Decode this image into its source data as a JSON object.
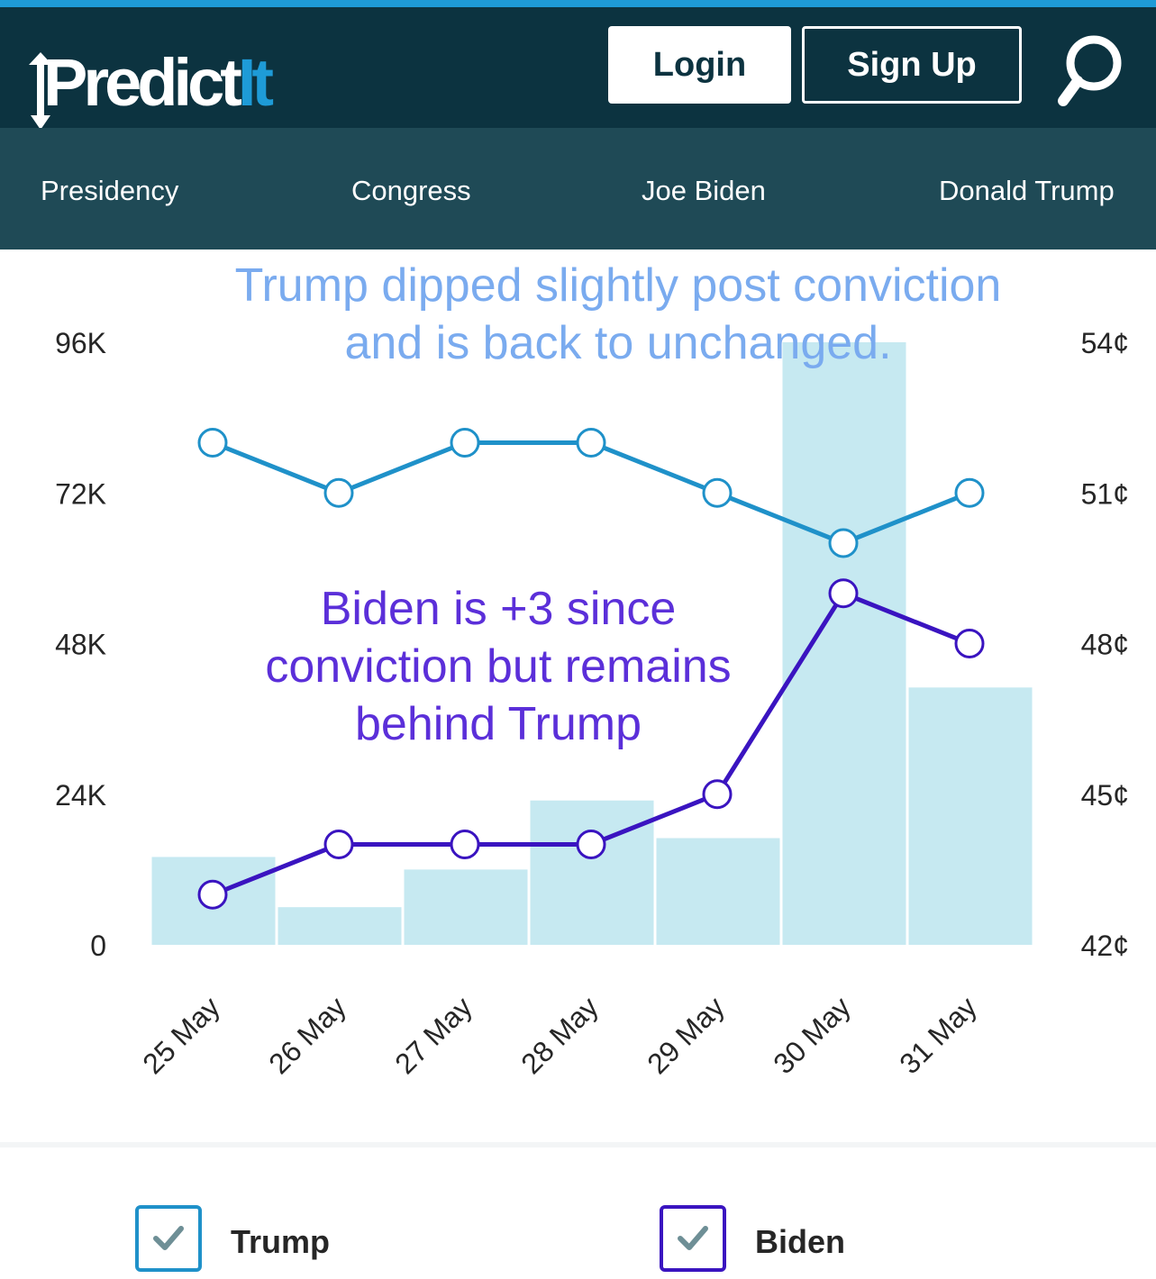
{
  "header": {
    "logo": "PredictIt",
    "login_label": "Login",
    "signup_label": "Sign Up",
    "search_icon": "search-icon"
  },
  "nav": {
    "items": [
      {
        "label": "Presidency"
      },
      {
        "label": "Congress"
      },
      {
        "label": "Joe Biden"
      },
      {
        "label": "Donald Trump"
      }
    ]
  },
  "annotations": {
    "trump": [
      "Trump dipped slightly post conviction",
      "and is back to unchanged."
    ],
    "biden": [
      "Biden is +3 since",
      "conviction but remains",
      "behind Trump"
    ]
  },
  "chart_data": {
    "type": "line",
    "categories": [
      "25 May",
      "26 May",
      "27 May",
      "28 May",
      "29 May",
      "30 May",
      "31 May"
    ],
    "series": [
      {
        "name": "Trump",
        "values": [
          52,
          51,
          52,
          52,
          51,
          50,
          51
        ],
        "color": "#1f91c9"
      },
      {
        "name": "Biden",
        "values": [
          43,
          44,
          44,
          44,
          45,
          49,
          48
        ],
        "color": "#3a14c0"
      }
    ],
    "volume": {
      "values": [
        14000,
        6000,
        12000,
        23000,
        17000,
        96000,
        41000
      ],
      "color": "#c6e9f1"
    },
    "y_left": {
      "ticks": [
        "0",
        "24K",
        "48K",
        "72K",
        "96K"
      ],
      "range": [
        0,
        96000
      ]
    },
    "y_right": {
      "ticks": [
        "42¢",
        "45¢",
        "48¢",
        "51¢",
        "54¢"
      ],
      "range": [
        42,
        54
      ]
    },
    "grid": false,
    "legend": "bottom"
  },
  "legend": {
    "items": [
      {
        "label": "Trump",
        "color": "#1f91c9"
      },
      {
        "label": "Biden",
        "color": "#3a14c0"
      }
    ]
  },
  "colors": {
    "header_bg": "#0c3340",
    "nav_bg": "#1f4a56",
    "accent": "#1e9bd7"
  }
}
